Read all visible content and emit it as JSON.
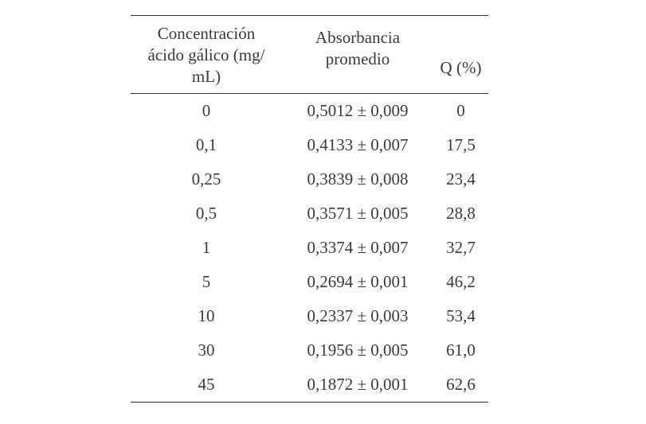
{
  "table": {
    "headers": {
      "concentration": "Concentración ácido gálico (mg/ mL)",
      "absorbance": "Absorbancia promedio",
      "q": "Q (%)"
    },
    "header_lines": {
      "concentration": [
        "Concentración",
        "ácido gálico (mg/",
        "mL)"
      ],
      "absorbance": [
        "Absorbancia",
        "promedio"
      ]
    },
    "rows": [
      {
        "concentration": "0",
        "absorbance": "0,5012 ± 0,009",
        "q": "0"
      },
      {
        "concentration": "0,1",
        "absorbance": "0,4133 ± 0,007",
        "q": "17,5"
      },
      {
        "concentration": "0,25",
        "absorbance": "0,3839 ± 0,008",
        "q": "23,4"
      },
      {
        "concentration": "0,5",
        "absorbance": "0,3571 ± 0,005",
        "q": "28,8"
      },
      {
        "concentration": "1",
        "absorbance": "0,3374 ± 0,007",
        "q": "32,7"
      },
      {
        "concentration": "5",
        "absorbance": "0,2694 ± 0,001",
        "q": "46,2"
      },
      {
        "concentration": "10",
        "absorbance": "0,2337 ± 0,003",
        "q": "53,4"
      },
      {
        "concentration": "30",
        "absorbance": "0,1956 ± 0,005",
        "q": "61,0"
      },
      {
        "concentration": "45",
        "absorbance": "0,1872 ± 0,001",
        "q": "62,6"
      }
    ]
  }
}
